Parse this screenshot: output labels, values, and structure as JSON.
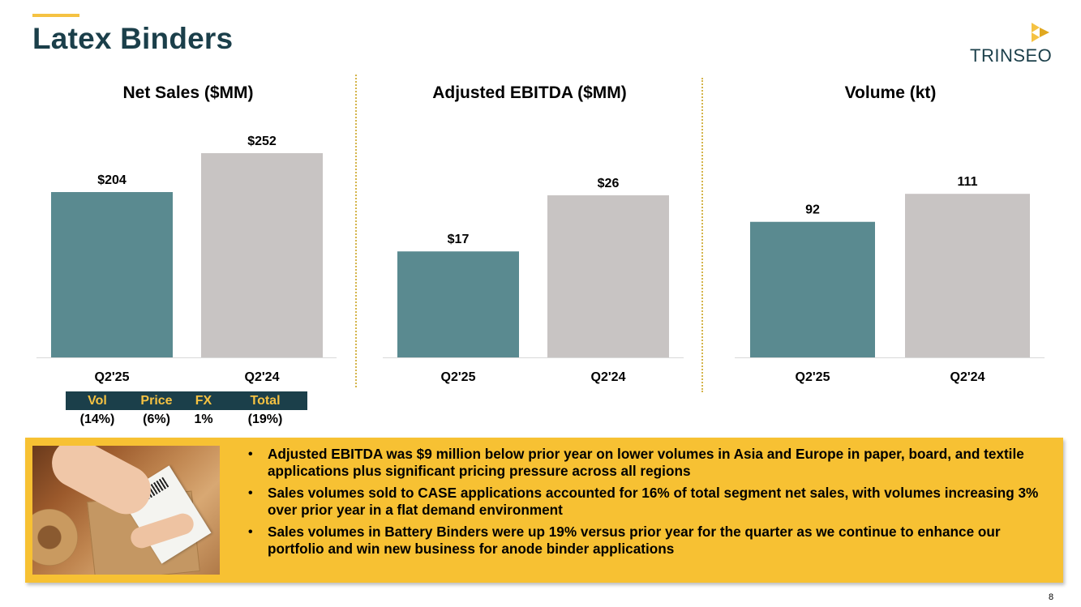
{
  "page": {
    "title": "Latex Binders",
    "page_number": "8",
    "brand_text": "TRINSEO",
    "colors": {
      "title": "#1b3f4a",
      "accent": "#f5c242",
      "current_bar": "#5a8a90",
      "prior_bar": "#c8c4c3",
      "callout_bg": "#f7c133"
    }
  },
  "chart_data": [
    {
      "type": "bar",
      "title": "Net Sales ($MM)",
      "categories": [
        "Q2'25",
        "Q2'24"
      ],
      "values": [
        204,
        252
      ],
      "value_labels": [
        "$204",
        "$252"
      ],
      "ylim": [
        0,
        300
      ],
      "grid": false
    },
    {
      "type": "bar",
      "title": "Adjusted EBITDA ($MM)",
      "categories": [
        "Q2'25",
        "Q2'24"
      ],
      "values": [
        17,
        26
      ],
      "value_labels": [
        "$17",
        "$26"
      ],
      "ylim": [
        0,
        39
      ],
      "grid": false
    },
    {
      "type": "bar",
      "title": "Volume (kt)",
      "categories": [
        "Q2'25",
        "Q2'24"
      ],
      "values": [
        92,
        111
      ],
      "value_labels": [
        "92",
        "111"
      ],
      "ylim": [
        0,
        165
      ],
      "grid": false
    }
  ],
  "bridge": {
    "headers": [
      "Vol",
      "Price",
      "FX",
      "Total"
    ],
    "values": [
      "(14%)",
      "(6%)",
      "1%",
      "(19%)"
    ]
  },
  "callout": {
    "bullets": [
      "Adjusted EBITDA was $9 million below prior year on lower volumes in Asia and Europe in paper, board, and textile applications plus significant pricing pressure across all regions",
      "Sales volumes sold to CASE applications accounted for 16% of total segment net sales, with volumes increasing 3% over prior year in a flat demand environment",
      "Sales volumes in Battery Binders were up 19% versus prior year for the quarter as we continue to enhance our portfolio and win new business for anode binder applications"
    ]
  }
}
